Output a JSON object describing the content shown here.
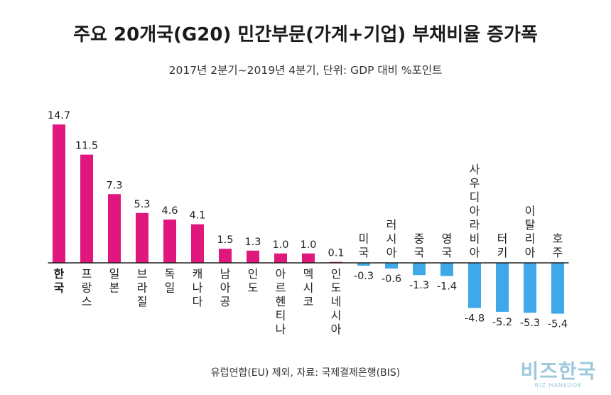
{
  "title": "주요 20개국(G20) 민간부문(가계+기업) 부채비율 증가폭",
  "subtitle": "2017년 2분기~2019년 4분기, 단위: GDP 대비 %포인트",
  "source": "유럽연합(EU) 제외, 자료: 국제결제은행(BIS)",
  "logo": {
    "main": "비즈한국",
    "sub": "BIZ.HANKOOK"
  },
  "colors": {
    "positive": "#e0187d",
    "negative": "#3ea8e8",
    "axis": "#222222"
  },
  "chart_data": {
    "type": "bar",
    "title": "주요 20개국(G20) 민간부문(가계+기업) 부채비율 증가폭",
    "subtitle": "2017년 2분기~2019년 4분기, 단위: GDP 대비 %포인트",
    "categories": [
      "한국",
      "프랑스",
      "일본",
      "브라질",
      "독일",
      "캐나다",
      "남아공",
      "인도",
      "아르헨티나",
      "멕시코",
      "인도네시아",
      "미국",
      "러시아",
      "중국",
      "영국",
      "사우디아라비아",
      "터키",
      "이탈리아",
      "호주"
    ],
    "values": [
      14.7,
      11.5,
      7.3,
      5.3,
      4.6,
      4.1,
      1.5,
      1.3,
      1.0,
      1.0,
      0.1,
      -0.3,
      -0.6,
      -1.3,
      -1.4,
      -4.8,
      -5.2,
      -5.3,
      -5.4
    ],
    "value_labels": [
      "14.7",
      "11.5",
      "7.3",
      "5.3",
      "4.6",
      "4.1",
      "1.5",
      "1.3",
      "1.0",
      "1.0",
      "0.1",
      "-0.3",
      "-0.6",
      "-1.3",
      "-1.4",
      "-4.8",
      "-5.2",
      "-5.3",
      "-5.4"
    ],
    "highlight": "한국",
    "grid": false,
    "legend": "none"
  }
}
